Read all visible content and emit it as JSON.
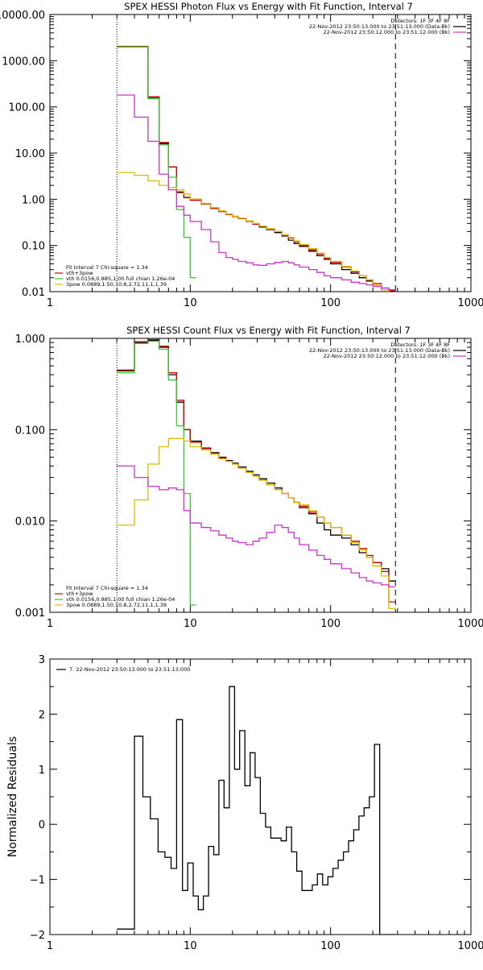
{
  "chart_data": [
    {
      "type": "line",
      "title": "SPEX HESSI Photon Flux vs Energy with Fit Function, Interval 7",
      "xscale": "log",
      "yscale": "log",
      "xlim": [
        1,
        1000
      ],
      "ylim": [
        0.01,
        10000
      ],
      "x_ticks": [
        {
          "v": 1,
          "label": "1"
        },
        {
          "v": 10,
          "label": "10"
        },
        {
          "v": 100,
          "label": "100"
        },
        {
          "v": 1000,
          "label": "1000"
        }
      ],
      "y_ticks": [
        {
          "v": 10000,
          "label": "10000.00"
        },
        {
          "v": 1000,
          "label": "1000.00"
        },
        {
          "v": 100,
          "label": "100.00"
        },
        {
          "v": 10,
          "label": "10.00"
        },
        {
          "v": 1,
          "label": "1.00"
        },
        {
          "v": 0.1,
          "label": "0.10"
        },
        {
          "v": 0.01,
          "label": "0.01"
        }
      ],
      "ylabel": "",
      "vlines": [
        {
          "x": 3,
          "style": "dotted"
        },
        {
          "x": 290,
          "style": "dashed"
        }
      ],
      "legend_top_right": [
        "Detectors: 1F 3F 4F 8F",
        "22-Nov-2012 23:50:13.000 to 23:51:13.000 (Data-Bk)",
        "22-Nov-2012 23:50:12.000 to 23:51:12.000 (Bk)"
      ],
      "legend_top_right_colors": [
        "",
        "#000000",
        "#cc33cc"
      ],
      "legend_bottom_left": [
        "Fit Interval 7   Chi-square = 1.34",
        "vth+3pow",
        "vth 0.0156,0.885,1.00  full chian 1.26e-04",
        "3pow 0.0889,1.50,10.8,2.72,11.1,1.39"
      ],
      "legend_bottom_left_colors": [
        "",
        "#cc0000",
        "#33cc33",
        "#ddbb00"
      ],
      "series": [
        {
          "color": "#000000",
          "edges": [
            3,
            4,
            5,
            6,
            7,
            8,
            9,
            10,
            12,
            14,
            16,
            18,
            20,
            22,
            25,
            28,
            31,
            35,
            40,
            45,
            50,
            55,
            60,
            70,
            80,
            90,
            100,
            120,
            140,
            160,
            180,
            200,
            230,
            260,
            290
          ],
          "values": [
            2000,
            2000,
            160,
            16,
            5,
            1.4,
            1.1,
            1.0,
            0.8,
            0.65,
            0.55,
            0.47,
            0.42,
            0.38,
            0.33,
            0.29,
            0.25,
            0.22,
            0.19,
            0.16,
            0.13,
            0.11,
            0.095,
            0.075,
            0.06,
            0.05,
            0.04,
            0.03,
            0.025,
            0.02,
            0.017,
            0.014,
            0.011,
            0.01
          ]
        },
        {
          "color": "#cc0000",
          "edges": [
            3,
            4,
            5,
            6,
            7,
            8,
            9,
            10,
            12,
            14,
            16,
            18,
            20,
            22,
            25,
            28,
            31,
            35,
            40,
            45,
            50,
            55,
            60,
            70,
            80,
            90,
            100,
            120,
            140,
            160,
            180,
            200,
            230,
            260,
            290
          ],
          "values": [
            2050,
            2050,
            165,
            17,
            5,
            1.45,
            1.08,
            0.95,
            0.78,
            0.63,
            0.54,
            0.47,
            0.42,
            0.38,
            0.33,
            0.29,
            0.26,
            0.225,
            0.2,
            0.17,
            0.145,
            0.12,
            0.1,
            0.08,
            0.065,
            0.052,
            0.043,
            0.034,
            0.027,
            0.022,
            0.018,
            0.015,
            0.012,
            0.0105
          ]
        },
        {
          "color": "#33cc33",
          "edges": [
            3,
            4,
            5,
            6,
            7,
            8,
            9,
            10,
            11
          ],
          "values": [
            2000,
            2000,
            150,
            15,
            3,
            0.6,
            0.15,
            0.02
          ]
        },
        {
          "color": "#ddbb00",
          "edges": [
            3,
            4,
            5,
            6,
            7,
            8,
            9,
            10,
            12,
            14,
            16,
            18,
            20,
            22,
            25,
            28,
            31,
            35,
            40,
            45,
            50,
            55,
            60,
            70,
            80,
            90,
            100,
            120,
            140,
            160,
            180,
            200,
            230,
            260,
            290
          ],
          "values": [
            3.8,
            3.3,
            2.5,
            2.0,
            1.8,
            1.6,
            1.3,
            1.0,
            0.8,
            0.66,
            0.56,
            0.48,
            0.43,
            0.39,
            0.34,
            0.3,
            0.26,
            0.23,
            0.2,
            0.17,
            0.15,
            0.125,
            0.105,
            0.085,
            0.068,
            0.055,
            0.045,
            0.035,
            0.028,
            0.022,
            0.018,
            0.014,
            0.011,
            0.0095
          ]
        },
        {
          "color": "#cc33cc",
          "edges": [
            3,
            4,
            5,
            6,
            7,
            8,
            9,
            10,
            12,
            14,
            16,
            18,
            20,
            22,
            25,
            28,
            31,
            35,
            40,
            45,
            50,
            55,
            60,
            70,
            80,
            90,
            100,
            120,
            140,
            160,
            180,
            200,
            230,
            260,
            290
          ],
          "values": [
            180,
            60,
            18,
            3.5,
            1.6,
            0.7,
            0.45,
            0.33,
            0.22,
            0.12,
            0.07,
            0.055,
            0.05,
            0.045,
            0.042,
            0.038,
            0.037,
            0.04,
            0.043,
            0.045,
            0.042,
            0.038,
            0.034,
            0.03,
            0.026,
            0.022,
            0.02,
            0.018,
            0.016,
            0.015,
            0.014,
            0.013,
            0.012,
            0.011
          ]
        }
      ]
    },
    {
      "type": "line",
      "title": "SPEX HESSI Count Flux vs Energy with Fit Function, Interval 7",
      "xscale": "log",
      "yscale": "log",
      "xlim": [
        1,
        1000
      ],
      "ylim": [
        0.001,
        1.0
      ],
      "x_ticks": [
        {
          "v": 1,
          "label": "1"
        },
        {
          "v": 10,
          "label": "10"
        },
        {
          "v": 100,
          "label": "100"
        },
        {
          "v": 1000,
          "label": "1000"
        }
      ],
      "y_ticks": [
        {
          "v": 1,
          "label": "1.000"
        },
        {
          "v": 0.1,
          "label": "0.100"
        },
        {
          "v": 0.01,
          "label": "0.010"
        },
        {
          "v": 0.001,
          "label": "0.001"
        }
      ],
      "ylabel": "",
      "vlines": [
        {
          "x": 3,
          "style": "dotted"
        },
        {
          "x": 290,
          "style": "dashed"
        }
      ],
      "legend_top_right": [
        "Detectors: 1F 3F 4F 8F",
        "22-Nov-2012 23:50:13.000 to 23:51:13.000 (Data-Bk)",
        "22-Nov-2012 23:50:12.000 to 23:51:12.000 (Bk)"
      ],
      "legend_top_right_colors": [
        "",
        "#000000",
        "#cc33cc"
      ],
      "legend_bottom_left": [
        "Fit Interval 7   Chi-square = 1.34",
        "vth+3pow",
        "vth 0.0156,0.885,1.00  full chian 1.26e-04",
        "3pow 0.0889,1.50,10.8,2.72,11.1,1.39"
      ],
      "legend_bottom_left_colors": [
        "",
        "#cc0000",
        "#33cc33",
        "#ddbb00"
      ],
      "series": [
        {
          "color": "#000000",
          "edges": [
            3,
            4,
            5,
            6,
            7,
            8,
            9,
            10,
            12,
            14,
            16,
            18,
            20,
            22,
            25,
            28,
            31,
            35,
            40,
            45,
            50,
            55,
            60,
            70,
            80,
            90,
            100,
            120,
            140,
            160,
            180,
            200,
            230,
            260,
            290
          ],
          "values": [
            0.44,
            0.9,
            0.95,
            0.8,
            0.4,
            0.2,
            0.1,
            0.075,
            0.063,
            0.056,
            0.05,
            0.046,
            0.043,
            0.039,
            0.035,
            0.032,
            0.029,
            0.026,
            0.023,
            0.02,
            0.018,
            0.016,
            0.014,
            0.012,
            0.0095,
            0.008,
            0.007,
            0.0065,
            0.0055,
            0.0045,
            0.004,
            0.0035,
            0.003,
            0.0022
          ]
        },
        {
          "color": "#cc0000",
          "edges": [
            3,
            4,
            5,
            6,
            7,
            8,
            9,
            10,
            12,
            14,
            16,
            18,
            20,
            22,
            25,
            28,
            31,
            35,
            40,
            45,
            50,
            55,
            60,
            70,
            80,
            90,
            100,
            120,
            140,
            160,
            180,
            200,
            230,
            260,
            290
          ],
          "values": [
            0.45,
            0.92,
            0.97,
            0.82,
            0.42,
            0.21,
            0.1,
            0.073,
            0.062,
            0.055,
            0.049,
            0.045,
            0.042,
            0.038,
            0.034,
            0.031,
            0.028,
            0.025,
            0.022,
            0.02,
            0.018,
            0.016,
            0.0145,
            0.0125,
            0.011,
            0.0095,
            0.0085,
            0.007,
            0.006,
            0.005,
            0.0042,
            0.0035,
            0.0028,
            0.0013
          ]
        },
        {
          "color": "#33cc33",
          "edges": [
            3,
            4,
            5,
            6,
            7,
            8,
            9,
            10,
            11
          ],
          "values": [
            0.42,
            0.88,
            0.93,
            0.76,
            0.35,
            0.11,
            0.02,
            0.0012
          ]
        },
        {
          "color": "#ddbb00",
          "edges": [
            3,
            4,
            5,
            6,
            7,
            8,
            9,
            10,
            12,
            14,
            16,
            18,
            20,
            22,
            25,
            28,
            31,
            35,
            40,
            45,
            50,
            55,
            60,
            70,
            80,
            90,
            100,
            120,
            140,
            160,
            180,
            200,
            230,
            260,
            290
          ],
          "values": [
            0.009,
            0.017,
            0.042,
            0.065,
            0.08,
            0.08,
            0.075,
            0.065,
            0.06,
            0.054,
            0.048,
            0.045,
            0.042,
            0.038,
            0.034,
            0.031,
            0.028,
            0.025,
            0.022,
            0.02,
            0.018,
            0.016,
            0.015,
            0.013,
            0.011,
            0.0095,
            0.0085,
            0.007,
            0.0058,
            0.0048,
            0.004,
            0.0032,
            0.0025,
            0.0011
          ]
        },
        {
          "color": "#cc33cc",
          "edges": [
            3,
            4,
            5,
            6,
            7,
            8,
            9,
            10,
            12,
            14,
            16,
            18,
            20,
            22,
            25,
            28,
            31,
            35,
            40,
            45,
            50,
            55,
            60,
            70,
            80,
            90,
            100,
            120,
            140,
            160,
            180,
            200,
            230,
            260,
            290
          ],
          "values": [
            0.04,
            0.03,
            0.024,
            0.022,
            0.023,
            0.022,
            0.013,
            0.0095,
            0.0085,
            0.0078,
            0.007,
            0.0065,
            0.006,
            0.0058,
            0.0055,
            0.006,
            0.0065,
            0.0075,
            0.009,
            0.0085,
            0.0075,
            0.0065,
            0.0055,
            0.0048,
            0.0042,
            0.0038,
            0.0034,
            0.003,
            0.0027,
            0.0024,
            0.0022,
            0.0021,
            0.002,
            0.0019
          ]
        }
      ]
    },
    {
      "type": "line",
      "title": "",
      "xscale": "log",
      "yscale": "linear",
      "xlim": [
        1,
        1000
      ],
      "ylim": [
        -2,
        3
      ],
      "x_ticks": [
        {
          "v": 1,
          "label": "1"
        },
        {
          "v": 10,
          "label": "10"
        },
        {
          "v": 100,
          "label": "100"
        },
        {
          "v": 1000,
          "label": "1000"
        }
      ],
      "y_ticks": [
        {
          "v": 3,
          "label": "3"
        },
        {
          "v": 2,
          "label": "2"
        },
        {
          "v": 1,
          "label": "1"
        },
        {
          "v": 0,
          "label": "0"
        },
        {
          "v": -1,
          "label": "−1"
        },
        {
          "v": -2,
          "label": "−2"
        }
      ],
      "ylabel": "Normalized Residuals",
      "vlines": [],
      "legend_top_left": "7. 22-Nov-2012 23:50:13.000 to 23:51:13.000",
      "series": [
        {
          "color": "#000000",
          "edges": [
            3,
            4,
            4.6,
            5.2,
            5.9,
            6.6,
            7.3,
            8.0,
            8.8,
            9.6,
            10.5,
            11.4,
            12.4,
            13.5,
            14.7,
            16,
            17.4,
            19,
            20.7,
            22.5,
            24.5,
            26.7,
            29,
            31.6,
            34.4,
            37.5,
            40.8,
            44.4,
            48.4,
            52.7,
            57.4,
            62.5,
            68,
            74,
            80.6,
            87.8,
            95.6,
            104,
            113.3,
            123.4,
            134.3,
            146.2,
            159.2,
            173.4,
            188.8,
            205.6,
            223.8,
            243.7,
            265.3,
            290
          ],
          "values": [
            -1.9,
            1.6,
            0.5,
            0.1,
            -0.5,
            -0.6,
            -0.8,
            1.9,
            -1.2,
            -0.7,
            -1.3,
            -1.55,
            -1.3,
            -0.4,
            -0.55,
            0.8,
            0.3,
            2.5,
            1.0,
            1.7,
            0.7,
            1.3,
            0.85,
            0.2,
            -0.05,
            -0.25,
            -0.25,
            -0.3,
            -0.05,
            -0.5,
            -0.85,
            -1.2,
            -1.2,
            -1.1,
            -0.9,
            -1.1,
            -0.95,
            -0.8,
            -0.65,
            -0.5,
            -0.3,
            -0.1,
            0.15,
            0.3,
            0.5,
            1.45,
            -2.0,
            -2.0,
            -2.0
          ]
        }
      ]
    }
  ]
}
